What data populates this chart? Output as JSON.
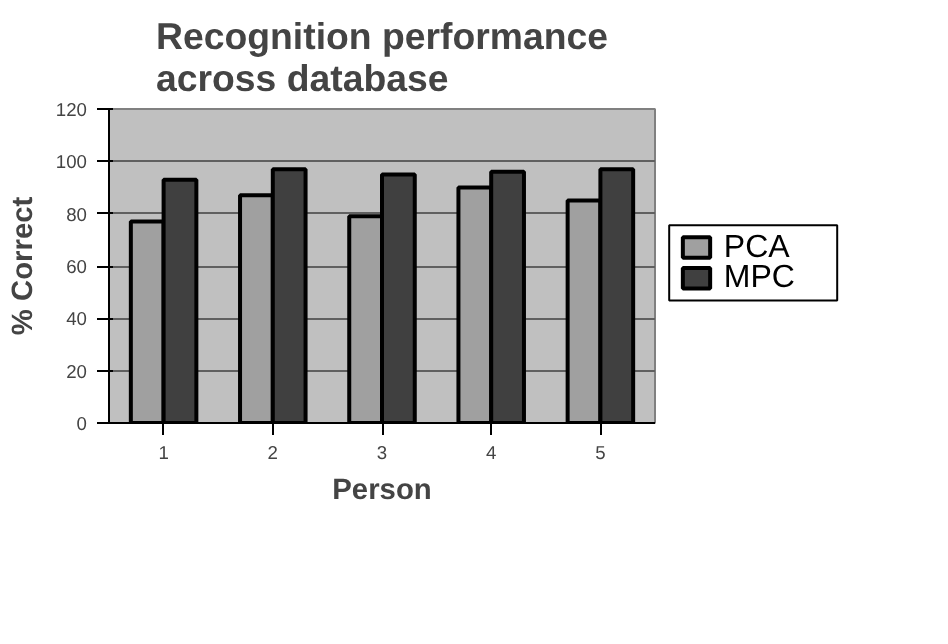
{
  "chart_data": {
    "type": "bar",
    "title": "Recognition performance across database",
    "xlabel": "Person",
    "ylabel": "% Correct",
    "categories": [
      "1",
      "2",
      "3",
      "4",
      "5"
    ],
    "series": [
      {
        "name": "PCA",
        "color": "#a0a0a0",
        "values": [
          77,
          87,
          79,
          90,
          85
        ]
      },
      {
        "name": "MPC",
        "color": "#404040",
        "values": [
          93,
          97,
          95,
          96,
          97
        ]
      }
    ],
    "ylim": [
      0,
      120
    ],
    "yticks": [
      0,
      20,
      40,
      60,
      80,
      100,
      120
    ],
    "grid": "y",
    "legend": "right"
  }
}
